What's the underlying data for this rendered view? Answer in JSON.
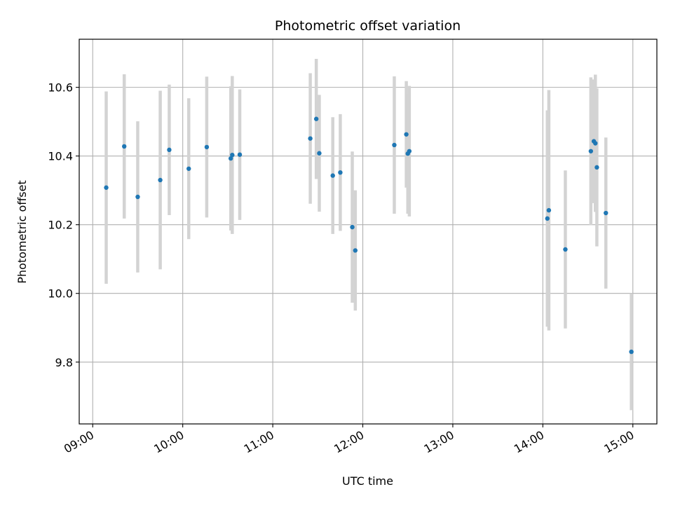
{
  "colors": {
    "point": "#1f77b4",
    "errorbar": "#d3d3d3",
    "grid": "#b0b0b0",
    "axes": "#000000",
    "background": "#ffffff"
  },
  "chart_data": {
    "type": "scatter",
    "title": "Photometric offset variation",
    "xlabel": "UTC time",
    "ylabel": "Photometric offset",
    "x_ticks": [
      "09:00",
      "10:00",
      "11:00",
      "12:00",
      "13:00",
      "14:00",
      "15:00"
    ],
    "y_ticks": [
      "9.8",
      "10.0",
      "10.2",
      "10.4",
      "10.6"
    ],
    "xlim": [
      "08:51",
      "15:16"
    ],
    "ylim": [
      9.62,
      10.74
    ],
    "grid": true,
    "points": [
      {
        "x": "09:09",
        "y": 10.308,
        "err": 0.28
      },
      {
        "x": "09:21",
        "y": 10.428,
        "err": 0.21
      },
      {
        "x": "09:30",
        "y": 10.281,
        "err": 0.22
      },
      {
        "x": "09:45",
        "y": 10.33,
        "err": 0.26
      },
      {
        "x": "09:51",
        "y": 10.418,
        "err": 0.19
      },
      {
        "x": "10:04",
        "y": 10.363,
        "err": 0.205
      },
      {
        "x": "10:16",
        "y": 10.426,
        "err": 0.205
      },
      {
        "x": "10:32",
        "y": 10.393,
        "err": 0.21
      },
      {
        "x": "10:33",
        "y": 10.403,
        "err": 0.23
      },
      {
        "x": "10:38",
        "y": 10.404,
        "err": 0.19
      },
      {
        "x": "11:25",
        "y": 10.451,
        "err": 0.19
      },
      {
        "x": "11:29",
        "y": 10.508,
        "err": 0.175
      },
      {
        "x": "11:31",
        "y": 10.408,
        "err": 0.17
      },
      {
        "x": "11:40",
        "y": 10.343,
        "err": 0.17
      },
      {
        "x": "11:45",
        "y": 10.352,
        "err": 0.17
      },
      {
        "x": "11:53",
        "y": 10.193,
        "err": 0.22
      },
      {
        "x": "11:55",
        "y": 10.125,
        "err": 0.175
      },
      {
        "x": "12:21",
        "y": 10.432,
        "err": 0.2
      },
      {
        "x": "12:29",
        "y": 10.463,
        "err": 0.155
      },
      {
        "x": "12:30",
        "y": 10.407,
        "err": 0.175
      },
      {
        "x": "12:31",
        "y": 10.414,
        "err": 0.19
      },
      {
        "x": "14:03",
        "y": 10.218,
        "err": 0.315
      },
      {
        "x": "14:04",
        "y": 10.242,
        "err": 0.35
      },
      {
        "x": "14:15",
        "y": 10.128,
        "err": 0.23
      },
      {
        "x": "14:32",
        "y": 10.414,
        "err": 0.215
      },
      {
        "x": "14:34",
        "y": 10.443,
        "err": 0.18
      },
      {
        "x": "14:35",
        "y": 10.437,
        "err": 0.2
      },
      {
        "x": "14:36",
        "y": 10.367,
        "err": 0.23
      },
      {
        "x": "14:42",
        "y": 10.234,
        "err": 0.22
      },
      {
        "x": "14:59",
        "y": 9.83,
        "err": 0.17
      }
    ]
  }
}
